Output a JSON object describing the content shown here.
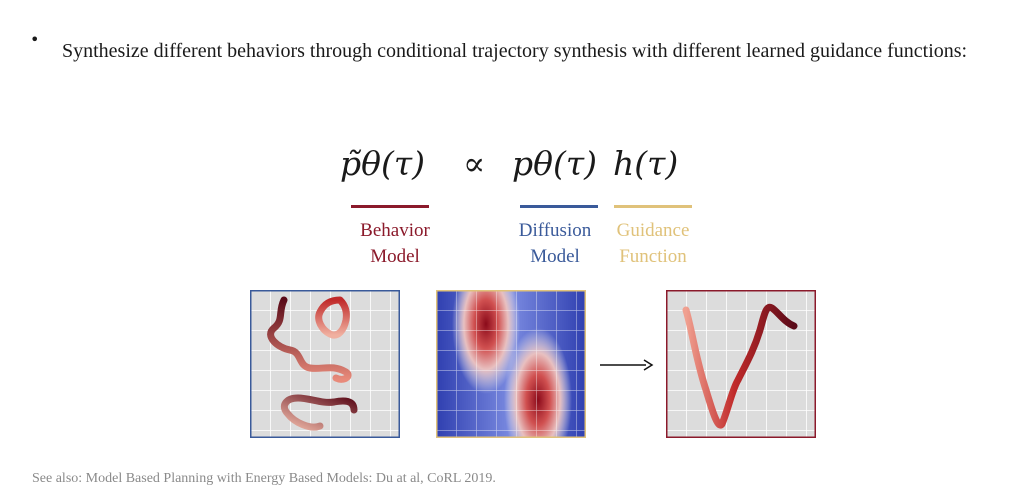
{
  "bullet": {
    "glyph": "•",
    "text": "Synthesize different behaviors through conditional trajectory synthesis with different learned guidance functions:"
  },
  "equation": {
    "behavior_term": "p̃θ(τ)",
    "proportional": "∝",
    "diffusion_term": "pθ(τ)",
    "guidance_term": "h(τ)"
  },
  "labels": {
    "behavior": [
      "Behavior",
      "Model"
    ],
    "diffusion": [
      "Diffusion",
      "Model"
    ],
    "guidance": [
      "Guidance",
      "Function"
    ]
  },
  "colors": {
    "behavior": "#8b1a2b",
    "diffusion": "#3a5a9a",
    "guidance": "#e0c27a",
    "grid_bg": "#dcdcdc"
  },
  "arrow_icon": "right-arrow-icon",
  "footer": "See also: Model Based Planning with Energy Based Models: Du at al, CoRL 2019."
}
